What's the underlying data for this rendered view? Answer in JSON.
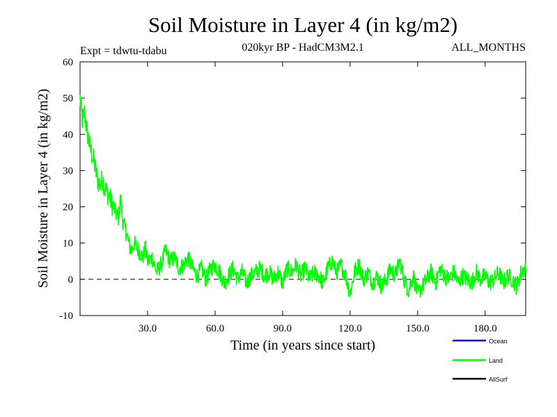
{
  "chart_data": {
    "type": "line",
    "title": "Soil Moisture in Layer 4 (in kg/m2)",
    "subtitle_left": "Expt = tdwtu-tdabu",
    "subtitle_center": "020kyr BP - HadCM3M2.1",
    "subtitle_right": "ALL_MONTHS",
    "xlabel": "Time (in years since start)",
    "ylabel": "Soil Moisture in Layer 4 (in kg/m2)",
    "xlim": [
      0,
      198
    ],
    "ylim": [
      -10,
      60
    ],
    "x_ticks": [
      30,
      60,
      90,
      120,
      150,
      180
    ],
    "x_tick_labels": [
      "30.0",
      "60.0",
      "90.0",
      "120.0",
      "150.0",
      "180.0"
    ],
    "y_ticks": [
      -10,
      0,
      10,
      20,
      30,
      40,
      50,
      60
    ],
    "y_tick_labels": [
      "-10",
      "0",
      "10",
      "20",
      "30",
      "40",
      "50",
      "60"
    ],
    "zero_line": true,
    "legend": [
      {
        "name": "Ocean",
        "color": "#0000ff"
      },
      {
        "name": "Land",
        "color": "#00ff00"
      },
      {
        "name": "AllSurf",
        "color": "#000000"
      }
    ],
    "series": [
      {
        "name": "Land",
        "color": "#00ff00",
        "x": [
          0,
          1,
          2,
          3,
          4,
          5,
          6,
          7,
          8,
          9,
          10,
          11,
          12,
          13,
          14,
          15,
          16,
          17,
          18,
          19,
          20,
          21,
          22,
          23,
          24,
          25,
          26,
          27,
          28,
          29,
          30,
          32,
          34,
          36,
          38,
          40,
          42,
          44,
          46,
          48,
          50,
          52,
          54,
          56,
          58,
          60,
          62,
          64,
          66,
          68,
          70,
          72,
          74,
          76,
          78,
          80,
          82,
          84,
          86,
          88,
          90,
          92,
          94,
          96,
          98,
          100,
          102,
          104,
          106,
          108,
          110,
          112,
          114,
          116,
          118,
          120,
          122,
          124,
          126,
          128,
          130,
          132,
          134,
          136,
          138,
          140,
          142,
          144,
          146,
          148,
          150,
          152,
          154,
          156,
          158,
          160,
          162,
          164,
          166,
          168,
          170,
          172,
          174,
          176,
          178,
          180,
          182,
          184,
          186,
          188,
          190,
          192,
          194,
          196,
          198
        ],
        "values": [
          50,
          44,
          46,
          41,
          38,
          35,
          33,
          30,
          27,
          26,
          28,
          25,
          24,
          23,
          21,
          20,
          18,
          17,
          22,
          16,
          14,
          12,
          9,
          8,
          10,
          9,
          8,
          7,
          6,
          9,
          5,
          6,
          2,
          4,
          8,
          5,
          6,
          3,
          4,
          6,
          3,
          1,
          3,
          0,
          3,
          4,
          2,
          -1,
          1,
          3,
          0,
          2,
          -1,
          1,
          2,
          3,
          1,
          2,
          0,
          2,
          -1,
          3,
          2,
          4,
          1,
          3,
          0,
          2,
          1,
          -1,
          3,
          5,
          2,
          4,
          1,
          -4,
          2,
          4,
          0,
          2,
          -1,
          1,
          -2,
          0,
          3,
          1,
          5,
          0,
          -3,
          1,
          -4,
          -2,
          0,
          2,
          -1,
          3,
          1,
          0,
          2,
          -1,
          1,
          0,
          -1,
          2,
          0,
          1,
          -1,
          0,
          2,
          -1,
          1,
          0,
          -2,
          2,
          3
        ]
      }
    ]
  }
}
